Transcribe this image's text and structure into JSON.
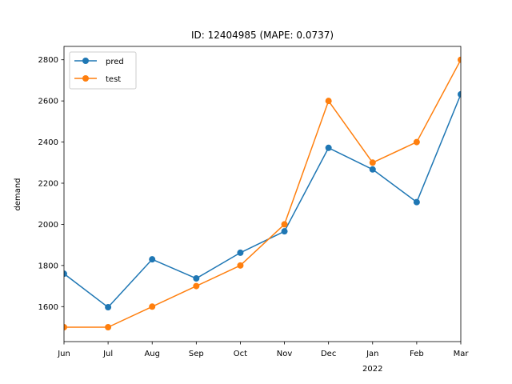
{
  "chart_data": {
    "type": "line",
    "title": "ID: 12404985 (MAPE: 0.0737)",
    "xlabel": "",
    "ylabel": "demand",
    "x": [
      "Jun",
      "Jul",
      "Aug",
      "Sep",
      "Oct",
      "Nov",
      "Dec",
      "Jan",
      "Feb",
      "Mar"
    ],
    "x_year_label": "2022",
    "x_year_under": "Jan",
    "ylim": [
      1430,
      2865
    ],
    "yticks": [
      1600,
      1800,
      2000,
      2200,
      2400,
      2600,
      2800
    ],
    "grid": false,
    "legend_position": "top-left",
    "series": [
      {
        "name": "pred",
        "color": "#1f77b4",
        "values": [
          1760,
          1597,
          1830,
          1737,
          1862,
          1966,
          2372,
          2267,
          2108,
          2632
        ]
      },
      {
        "name": "test",
        "color": "#ff7f0e",
        "values": [
          1500,
          1500,
          1600,
          1700,
          1800,
          2000,
          2600,
          2300,
          2400,
          2800
        ]
      }
    ]
  }
}
